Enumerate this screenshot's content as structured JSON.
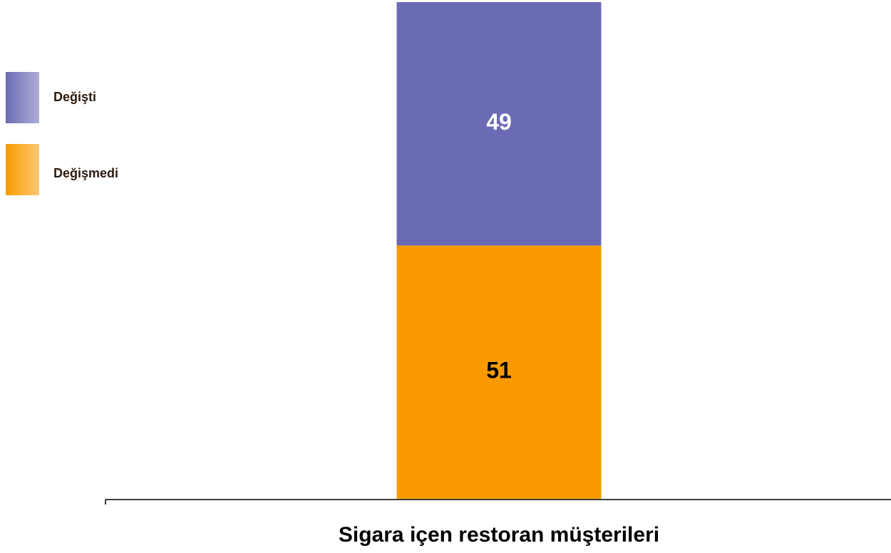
{
  "chart_data": {
    "type": "stacked_bar",
    "categories": [
      "Sigara içen restoran müşterileri"
    ],
    "series": [
      {
        "name": "Değişmedi",
        "color": "#f99b00",
        "values": [
          51
        ]
      },
      {
        "name": "Değişti",
        "color": "#6b6bb5",
        "values": [
          49
        ]
      }
    ],
    "legend": "left"
  }
}
